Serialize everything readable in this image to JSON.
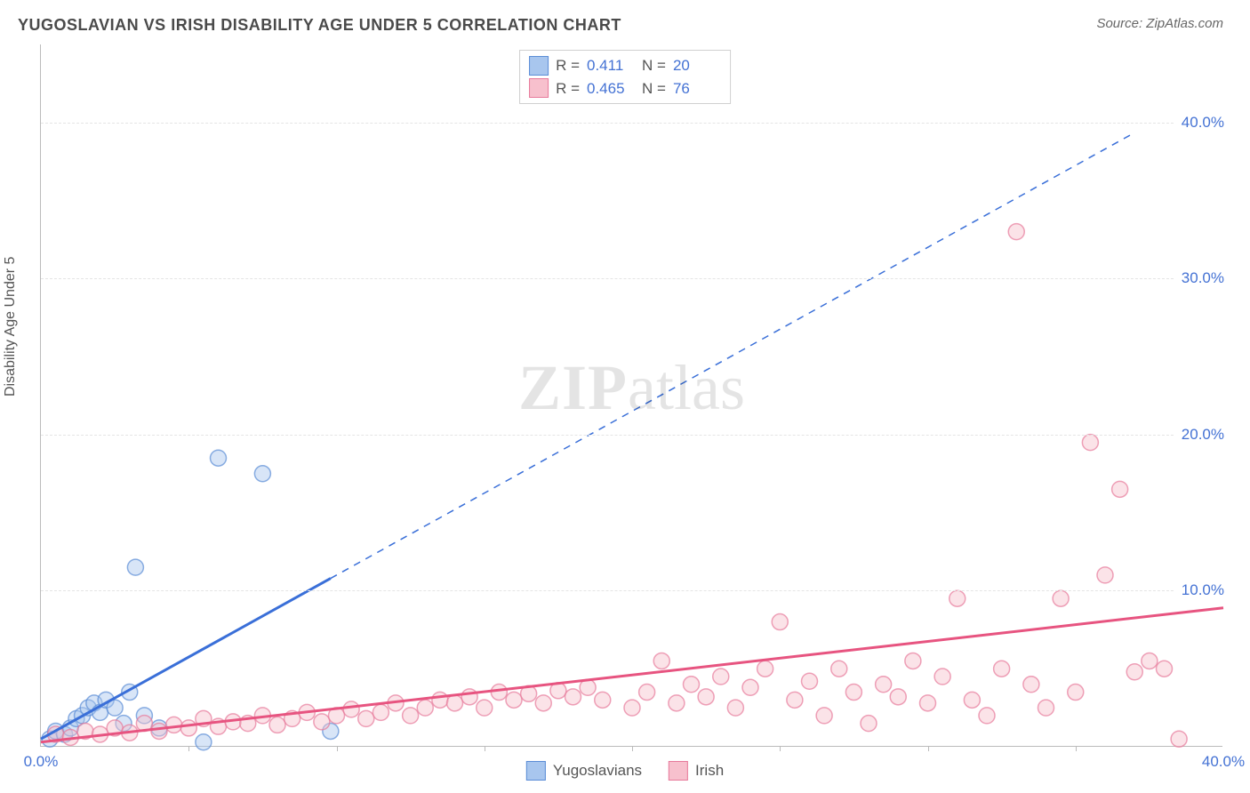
{
  "title": "YUGOSLAVIAN VS IRISH DISABILITY AGE UNDER 5 CORRELATION CHART",
  "source": "Source: ZipAtlas.com",
  "ylabel": "Disability Age Under 5",
  "watermark_bold": "ZIP",
  "watermark_light": "atlas",
  "chart": {
    "type": "scatter",
    "xlim": [
      0,
      40
    ],
    "ylim": [
      0,
      45
    ],
    "xticks": [
      0,
      40
    ],
    "xtick_labels": [
      "0.0%",
      "40.0%"
    ],
    "xtick_minor_step": 5,
    "ytick_step": 10,
    "ytick_labels": [
      "10.0%",
      "20.0%",
      "30.0%",
      "40.0%"
    ],
    "grid_color": "#e5e5e5",
    "axis_color": "#bbbbbb",
    "background_color": "#ffffff",
    "marker_radius": 9,
    "marker_opacity": 0.45,
    "marker_stroke_width": 1.5,
    "series": [
      {
        "name": "Yugoslavians",
        "color_fill": "#a8c6ee",
        "color_stroke": "#5b8dd6",
        "line_color": "#3a6fd8",
        "line_width": 3,
        "line_dash_after_x": 9.8,
        "R": "0.411",
        "N": "20",
        "points": [
          [
            0.3,
            0.5
          ],
          [
            0.5,
            1.0
          ],
          [
            0.8,
            0.8
          ],
          [
            1.0,
            1.2
          ],
          [
            1.2,
            1.8
          ],
          [
            1.4,
            2.0
          ],
          [
            1.6,
            2.5
          ],
          [
            1.8,
            2.8
          ],
          [
            2.0,
            2.2
          ],
          [
            2.2,
            3.0
          ],
          [
            2.5,
            2.5
          ],
          [
            2.8,
            1.5
          ],
          [
            3.0,
            3.5
          ],
          [
            3.2,
            11.5
          ],
          [
            3.5,
            2.0
          ],
          [
            4.0,
            1.2
          ],
          [
            5.5,
            0.3
          ],
          [
            6.0,
            18.5
          ],
          [
            7.5,
            17.5
          ],
          [
            9.8,
            1.0
          ]
        ],
        "regression": {
          "slope": 1.05,
          "intercept": 0.5,
          "x_max": 37
        }
      },
      {
        "name": "Irish",
        "color_fill": "#f7c0cd",
        "color_stroke": "#e77a9b",
        "line_color": "#e75480",
        "line_width": 3,
        "R": "0.465",
        "N": "76",
        "points": [
          [
            0.5,
            0.8
          ],
          [
            1.0,
            0.6
          ],
          [
            1.5,
            1.0
          ],
          [
            2.0,
            0.8
          ],
          [
            2.5,
            1.2
          ],
          [
            3.0,
            0.9
          ],
          [
            3.5,
            1.5
          ],
          [
            4.0,
            1.0
          ],
          [
            4.5,
            1.4
          ],
          [
            5.0,
            1.2
          ],
          [
            5.5,
            1.8
          ],
          [
            6.0,
            1.3
          ],
          [
            6.5,
            1.6
          ],
          [
            7.0,
            1.5
          ],
          [
            7.5,
            2.0
          ],
          [
            8.0,
            1.4
          ],
          [
            8.5,
            1.8
          ],
          [
            9.0,
            2.2
          ],
          [
            9.5,
            1.6
          ],
          [
            10.0,
            2.0
          ],
          [
            10.5,
            2.4
          ],
          [
            11.0,
            1.8
          ],
          [
            11.5,
            2.2
          ],
          [
            12.0,
            2.8
          ],
          [
            12.5,
            2.0
          ],
          [
            13.0,
            2.5
          ],
          [
            13.5,
            3.0
          ],
          [
            14.0,
            2.8
          ],
          [
            14.5,
            3.2
          ],
          [
            15.0,
            2.5
          ],
          [
            15.5,
            3.5
          ],
          [
            16.0,
            3.0
          ],
          [
            16.5,
            3.4
          ],
          [
            17.0,
            2.8
          ],
          [
            17.5,
            3.6
          ],
          [
            18.0,
            3.2
          ],
          [
            18.5,
            3.8
          ],
          [
            19.0,
            3.0
          ],
          [
            20.0,
            2.5
          ],
          [
            20.5,
            3.5
          ],
          [
            21.0,
            5.5
          ],
          [
            21.5,
            2.8
          ],
          [
            22.0,
            4.0
          ],
          [
            22.5,
            3.2
          ],
          [
            23.0,
            4.5
          ],
          [
            23.5,
            2.5
          ],
          [
            24.0,
            3.8
          ],
          [
            24.5,
            5.0
          ],
          [
            25.0,
            8.0
          ],
          [
            25.5,
            3.0
          ],
          [
            26.0,
            4.2
          ],
          [
            26.5,
            2.0
          ],
          [
            27.0,
            5.0
          ],
          [
            27.5,
            3.5
          ],
          [
            28.0,
            1.5
          ],
          [
            28.5,
            4.0
          ],
          [
            29.0,
            3.2
          ],
          [
            29.5,
            5.5
          ],
          [
            30.0,
            2.8
          ],
          [
            30.5,
            4.5
          ],
          [
            31.0,
            9.5
          ],
          [
            31.5,
            3.0
          ],
          [
            32.0,
            2.0
          ],
          [
            32.5,
            5.0
          ],
          [
            33.0,
            33.0
          ],
          [
            33.5,
            4.0
          ],
          [
            34.0,
            2.5
          ],
          [
            34.5,
            9.5
          ],
          [
            35.0,
            3.5
          ],
          [
            35.5,
            19.5
          ],
          [
            36.0,
            11.0
          ],
          [
            36.5,
            16.5
          ],
          [
            37.0,
            4.8
          ],
          [
            37.5,
            5.5
          ],
          [
            38.0,
            5.0
          ],
          [
            38.5,
            0.5
          ]
        ],
        "regression": {
          "slope": 0.215,
          "intercept": 0.3,
          "x_max": 40
        }
      }
    ]
  },
  "legend_bottom": [
    {
      "label": "Yugoslavians"
    },
    {
      "label": "Irish"
    }
  ]
}
